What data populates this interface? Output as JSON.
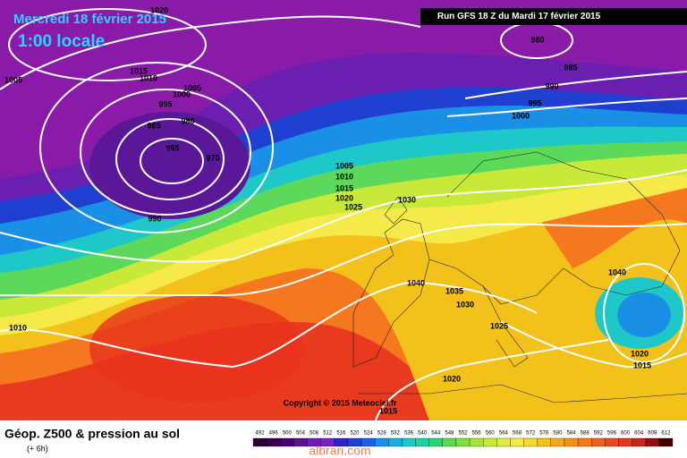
{
  "header": {
    "date": "Mercredi 18 février 2015",
    "time": "1:00 locale",
    "run": "Run GFS 18 Z du Mardi 17 février 2015"
  },
  "isobar_labels": [
    1020,
    1005,
    1015,
    1010,
    1000,
    1005,
    995,
    985,
    980,
    965,
    975,
    990,
    1005,
    1010,
    1015,
    1020,
    1025,
    1030,
    1040,
    1035,
    1030,
    1025,
    1020,
    1015,
    1040,
    1020,
    1015,
    1010,
    980,
    985,
    990,
    995,
    1000
  ],
  "copyright": "Copyright © 2015 Meteociel.fr",
  "legend": {
    "title": "Géop. Z500 & pression au sol",
    "subtitle": "(+ 6h)",
    "scale": [
      492,
      496,
      500,
      504,
      508,
      512,
      516,
      520,
      524,
      528,
      532,
      536,
      540,
      544,
      548,
      552,
      556,
      560,
      564,
      568,
      572,
      576,
      580,
      584,
      588,
      592,
      596,
      600,
      604,
      608,
      612
    ]
  },
  "watermark": "albrari.com"
}
